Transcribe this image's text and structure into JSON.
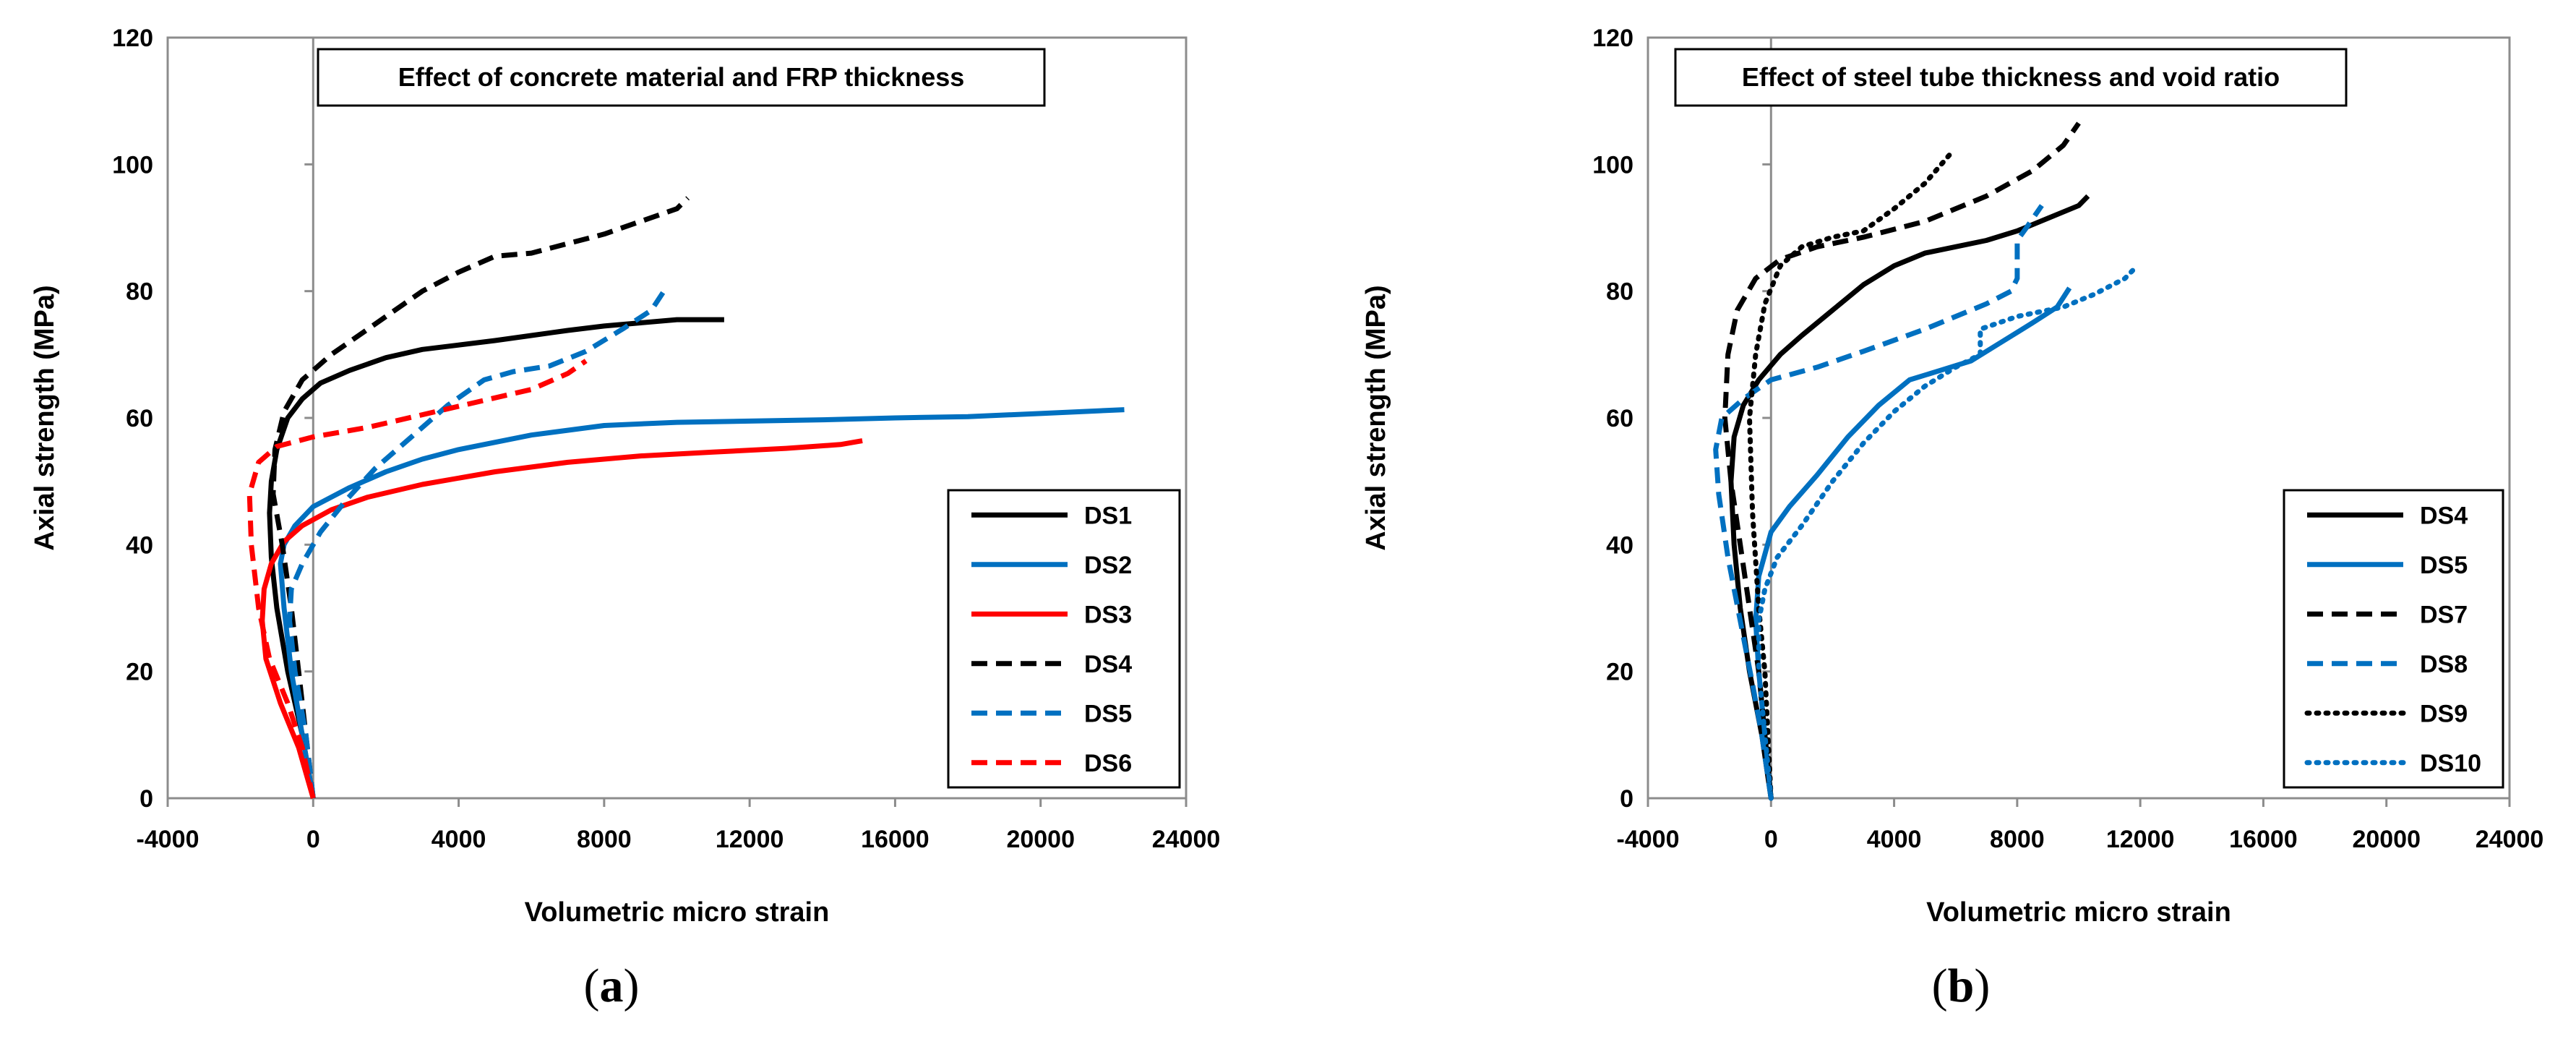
{
  "chart_data": [
    {
      "type": "line",
      "panel_label": "(a)",
      "title": "Effect of concrete material and FRP thickness",
      "xlabel": "Volumetric micro strain",
      "ylabel": "Axial strength (MPa)",
      "xlim": [
        -4000,
        24000
      ],
      "ylim": [
        0,
        120
      ],
      "xticks": [
        -4000,
        0,
        4000,
        8000,
        12000,
        16000,
        20000,
        24000
      ],
      "yticks": [
        0,
        20,
        40,
        60,
        80,
        100,
        120
      ],
      "legend_position": "bottom-right",
      "series": [
        {
          "name": "DS1",
          "color": "#000000",
          "dash": "solid",
          "points": [
            [
              0,
              0
            ],
            [
              -300,
              10
            ],
            [
              -700,
              20
            ],
            [
              -1000,
              30
            ],
            [
              -1150,
              38
            ],
            [
              -1200,
              45
            ],
            [
              -1150,
              50
            ],
            [
              -1000,
              55
            ],
            [
              -700,
              60
            ],
            [
              -300,
              63
            ],
            [
              200,
              65.5
            ],
            [
              1000,
              67.5
            ],
            [
              2000,
              69.5
            ],
            [
              3000,
              70.8
            ],
            [
              4000,
              71.5
            ],
            [
              5000,
              72.2
            ],
            [
              6000,
              73
            ],
            [
              7000,
              73.8
            ],
            [
              8000,
              74.5
            ],
            [
              9000,
              75
            ],
            [
              10000,
              75.5
            ],
            [
              11300,
              75.5
            ]
          ]
        },
        {
          "name": "DS2",
          "color": "#0070C0",
          "dash": "solid",
          "points": [
            [
              0,
              0
            ],
            [
              -300,
              10
            ],
            [
              -600,
              20
            ],
            [
              -800,
              30
            ],
            [
              -900,
              37
            ],
            [
              -800,
              40
            ],
            [
              -500,
              43
            ],
            [
              0,
              46
            ],
            [
              1000,
              49
            ],
            [
              2000,
              51.5
            ],
            [
              3000,
              53.5
            ],
            [
              4000,
              55
            ],
            [
              6000,
              57.3
            ],
            [
              8000,
              58.8
            ],
            [
              10000,
              59.3
            ],
            [
              12000,
              59.5
            ],
            [
              14000,
              59.7
            ],
            [
              16000,
              60
            ],
            [
              18000,
              60.2
            ],
            [
              20000,
              60.7
            ],
            [
              22300,
              61.3
            ]
          ]
        },
        {
          "name": "DS3",
          "color": "#FF0000",
          "dash": "solid",
          "points": [
            [
              0,
              0
            ],
            [
              -400,
              8
            ],
            [
              -900,
              15
            ],
            [
              -1300,
              22
            ],
            [
              -1400,
              28
            ],
            [
              -1350,
              33
            ],
            [
              -1150,
              37
            ],
            [
              -800,
              40.5
            ],
            [
              -300,
              43
            ],
            [
              500,
              45.5
            ],
            [
              1500,
              47.5
            ],
            [
              3000,
              49.5
            ],
            [
              5000,
              51.5
            ],
            [
              7000,
              53
            ],
            [
              9000,
              54
            ],
            [
              11000,
              54.6
            ],
            [
              13000,
              55.2
            ],
            [
              14500,
              55.8
            ],
            [
              15100,
              56.4
            ]
          ]
        },
        {
          "name": "DS4",
          "color": "#000000",
          "dash": "long",
          "points": [
            [
              0,
              0
            ],
            [
              -200,
              10
            ],
            [
              -400,
              20
            ],
            [
              -600,
              30
            ],
            [
              -850,
              40
            ],
            [
              -1100,
              48
            ],
            [
              -1050,
              55
            ],
            [
              -800,
              61
            ],
            [
              -300,
              66
            ],
            [
              500,
              70
            ],
            [
              1500,
              74
            ],
            [
              2500,
              78
            ],
            [
              3000,
              80
            ],
            [
              4000,
              83
            ],
            [
              5000,
              85.5
            ],
            [
              6000,
              86
            ],
            [
              7000,
              87.5
            ],
            [
              8000,
              89
            ],
            [
              9000,
              91
            ],
            [
              10000,
              93
            ],
            [
              10300,
              94.7
            ]
          ]
        },
        {
          "name": "DS5",
          "color": "#0070C0",
          "dash": "long",
          "points": [
            [
              0,
              0
            ],
            [
              -200,
              10
            ],
            [
              -500,
              20
            ],
            [
              -650,
              28
            ],
            [
              -600,
              33
            ],
            [
              -300,
              37
            ],
            [
              200,
              42
            ],
            [
              900,
              47
            ],
            [
              1700,
              52
            ],
            [
              2700,
              57
            ],
            [
              3700,
              62
            ],
            [
              4700,
              66
            ],
            [
              5500,
              67.3
            ],
            [
              6500,
              68.2
            ],
            [
              7500,
              70.5
            ],
            [
              8500,
              74
            ],
            [
              9300,
              77
            ],
            [
              9700,
              80.5
            ]
          ]
        },
        {
          "name": "DS6",
          "color": "#FF0000",
          "dash": "long",
          "points": [
            [
              0,
              0
            ],
            [
              -300,
              8
            ],
            [
              -700,
              15
            ],
            [
              -1200,
              22
            ],
            [
              -1500,
              30
            ],
            [
              -1700,
              40
            ],
            [
              -1750,
              48
            ],
            [
              -1500,
              53
            ],
            [
              -1000,
              55.5
            ],
            [
              0,
              57
            ],
            [
              1500,
              58.5
            ],
            [
              3000,
              60.5
            ],
            [
              4500,
              62.5
            ],
            [
              6000,
              64.5
            ],
            [
              7000,
              67
            ],
            [
              7500,
              69
            ]
          ]
        }
      ]
    },
    {
      "type": "line",
      "panel_label": "(b)",
      "title": "Effect of steel tube thickness and void ratio",
      "xlabel": "Volumetric micro strain",
      "ylabel": "Axial strength (MPa)",
      "xlim": [
        -4000,
        24000
      ],
      "ylim": [
        0,
        120
      ],
      "xticks": [
        -4000,
        0,
        4000,
        8000,
        12000,
        16000,
        20000,
        24000
      ],
      "yticks": [
        0,
        20,
        40,
        60,
        80,
        100,
        120
      ],
      "legend_position": "bottom-right",
      "series": [
        {
          "name": "DS4",
          "color": "#000000",
          "dash": "solid",
          "points": [
            [
              0,
              0
            ],
            [
              -300,
              10
            ],
            [
              -700,
              20
            ],
            [
              -1000,
              30
            ],
            [
              -1200,
              40
            ],
            [
              -1300,
              50
            ],
            [
              -1200,
              57
            ],
            [
              -900,
              62
            ],
            [
              -400,
              66
            ],
            [
              300,
              70
            ],
            [
              1000,
              73
            ],
            [
              2000,
              77
            ],
            [
              3000,
              81
            ],
            [
              4000,
              84
            ],
            [
              5000,
              86
            ],
            [
              6000,
              87
            ],
            [
              7000,
              88
            ],
            [
              8000,
              89.5
            ],
            [
              9000,
              91.5
            ],
            [
              10000,
              93.5
            ],
            [
              10300,
              95
            ]
          ]
        },
        {
          "name": "DS5",
          "color": "#0070C0",
          "dash": "solid",
          "points": [
            [
              0,
              0
            ],
            [
              -200,
              10
            ],
            [
              -400,
              20
            ],
            [
              -500,
              28
            ],
            [
              -400,
              35
            ],
            [
              0,
              42
            ],
            [
              600,
              46
            ],
            [
              1500,
              51
            ],
            [
              2500,
              57
            ],
            [
              3500,
              62
            ],
            [
              4500,
              66
            ],
            [
              5500,
              67.5
            ],
            [
              6500,
              69
            ],
            [
              7500,
              72
            ],
            [
              8500,
              75
            ],
            [
              9300,
              77.5
            ],
            [
              9700,
              80.5
            ]
          ]
        },
        {
          "name": "DS7",
          "color": "#000000",
          "dash": "long",
          "points": [
            [
              0,
              0
            ],
            [
              -200,
              10
            ],
            [
              -400,
              20
            ],
            [
              -700,
              30
            ],
            [
              -1000,
              40
            ],
            [
              -1300,
              50
            ],
            [
              -1500,
              60
            ],
            [
              -1400,
              70
            ],
            [
              -1100,
              77
            ],
            [
              -500,
              82
            ],
            [
              300,
              85
            ],
            [
              1500,
              87
            ],
            [
              3000,
              88.5
            ],
            [
              5000,
              91
            ],
            [
              7000,
              95
            ],
            [
              8500,
              99
            ],
            [
              9500,
              103
            ],
            [
              10000,
              106.5
            ]
          ]
        },
        {
          "name": "DS8",
          "color": "#0070C0",
          "dash": "long",
          "points": [
            [
              0,
              0
            ],
            [
              -300,
              10
            ],
            [
              -600,
              18
            ],
            [
              -1000,
              28
            ],
            [
              -1400,
              38
            ],
            [
              -1700,
              48
            ],
            [
              -1800,
              55
            ],
            [
              -1600,
              60
            ],
            [
              -900,
              63
            ],
            [
              0,
              66
            ],
            [
              1500,
              68
            ],
            [
              3000,
              70.5
            ],
            [
              5000,
              74
            ],
            [
              7000,
              78
            ],
            [
              7800,
              80
            ],
            [
              8000,
              82
            ],
            [
              8000,
              88
            ],
            [
              8300,
              90
            ],
            [
              8800,
              93.5
            ]
          ]
        },
        {
          "name": "DS9",
          "color": "#000000",
          "dash": "dot",
          "points": [
            [
              0,
              0
            ],
            [
              -100,
              10
            ],
            [
              -200,
              20
            ],
            [
              -400,
              30
            ],
            [
              -600,
              45
            ],
            [
              -700,
              60
            ],
            [
              -500,
              70
            ],
            [
              -200,
              78
            ],
            [
              300,
              84
            ],
            [
              1000,
              87
            ],
            [
              2000,
              88.5
            ],
            [
              3000,
              89.5
            ],
            [
              4000,
              93
            ],
            [
              5000,
              97
            ],
            [
              5800,
              101.5
            ]
          ]
        },
        {
          "name": "DS10",
          "color": "#0070C0",
          "dash": "dot",
          "points": [
            [
              0,
              0
            ],
            [
              -200,
              10
            ],
            [
              -400,
              20
            ],
            [
              -400,
              28
            ],
            [
              -200,
              33
            ],
            [
              200,
              38
            ],
            [
              1000,
              43
            ],
            [
              2000,
              50
            ],
            [
              3000,
              56
            ],
            [
              4000,
              61
            ],
            [
              5000,
              65
            ],
            [
              6000,
              68
            ],
            [
              6800,
              70
            ],
            [
              6800,
              74
            ],
            [
              8000,
              76
            ],
            [
              9500,
              77.5
            ],
            [
              10500,
              79.5
            ],
            [
              11500,
              82
            ],
            [
              11900,
              84
            ]
          ]
        }
      ]
    }
  ]
}
